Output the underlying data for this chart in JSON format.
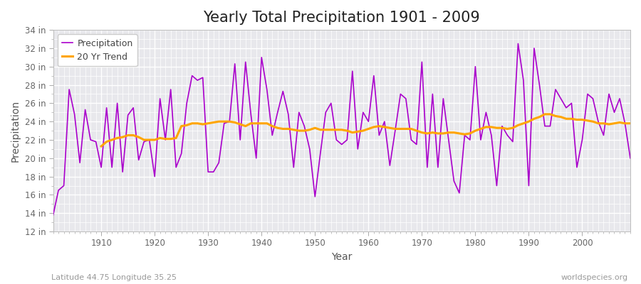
{
  "title": "Yearly Total Precipitation 1901 - 2009",
  "xlabel": "Year",
  "ylabel": "Precipitation",
  "subtitle_left": "Latitude 44.75 Longitude 35.25",
  "subtitle_right": "worldspecies.org",
  "years": [
    1901,
    1902,
    1903,
    1904,
    1905,
    1906,
    1907,
    1908,
    1909,
    1910,
    1911,
    1912,
    1913,
    1914,
    1915,
    1916,
    1917,
    1918,
    1919,
    1920,
    1921,
    1922,
    1923,
    1924,
    1925,
    1926,
    1927,
    1928,
    1929,
    1930,
    1931,
    1932,
    1933,
    1934,
    1935,
    1936,
    1937,
    1938,
    1939,
    1940,
    1941,
    1942,
    1943,
    1944,
    1945,
    1946,
    1947,
    1948,
    1949,
    1950,
    1951,
    1952,
    1953,
    1954,
    1955,
    1956,
    1957,
    1958,
    1959,
    1960,
    1961,
    1962,
    1963,
    1964,
    1965,
    1966,
    1967,
    1968,
    1969,
    1970,
    1971,
    1972,
    1973,
    1974,
    1975,
    1976,
    1977,
    1978,
    1979,
    1980,
    1981,
    1982,
    1983,
    1984,
    1985,
    1986,
    1987,
    1988,
    1989,
    1990,
    1991,
    1992,
    1993,
    1994,
    1995,
    1996,
    1997,
    1998,
    1999,
    2000,
    2001,
    2002,
    2003,
    2004,
    2005,
    2006,
    2007,
    2008,
    2009
  ],
  "precip": [
    13.8,
    16.5,
    17.0,
    27.5,
    24.8,
    19.5,
    25.3,
    22.0,
    21.8,
    19.0,
    25.5,
    19.0,
    26.0,
    18.5,
    24.7,
    25.5,
    19.8,
    21.8,
    22.0,
    18.0,
    26.5,
    22.0,
    27.5,
    19.0,
    20.5,
    26.0,
    29.0,
    28.5,
    28.8,
    18.5,
    18.5,
    19.5,
    23.8,
    24.0,
    30.3,
    22.0,
    30.5,
    24.8,
    20.0,
    31.0,
    27.5,
    22.5,
    25.0,
    27.3,
    24.8,
    19.0,
    25.0,
    23.5,
    21.0,
    15.8,
    20.5,
    25.0,
    26.0,
    22.0,
    21.5,
    22.0,
    29.5,
    21.0,
    25.0,
    24.0,
    29.0,
    22.5,
    24.0,
    19.2,
    23.0,
    27.0,
    26.5,
    22.0,
    21.5,
    30.5,
    19.0,
    27.0,
    19.0,
    26.5,
    22.0,
    17.5,
    16.2,
    22.5,
    22.0,
    30.0,
    22.0,
    25.0,
    22.5,
    17.0,
    23.5,
    22.5,
    21.8,
    32.5,
    28.5,
    17.0,
    32.0,
    28.0,
    23.5,
    23.5,
    27.5,
    26.5,
    25.5,
    26.0,
    19.0,
    22.0,
    27.0,
    26.5,
    24.0,
    22.5,
    27.0,
    25.0,
    26.5,
    23.8,
    20.0
  ],
  "trend": [
    null,
    null,
    null,
    null,
    null,
    null,
    null,
    null,
    null,
    21.3,
    21.8,
    22.0,
    22.2,
    22.3,
    22.5,
    22.5,
    22.3,
    22.0,
    22.0,
    22.0,
    22.2,
    22.1,
    22.1,
    22.2,
    23.5,
    23.6,
    23.8,
    23.8,
    23.7,
    23.8,
    23.9,
    24.0,
    24.0,
    24.0,
    23.9,
    23.7,
    23.5,
    23.8,
    23.8,
    23.8,
    23.8,
    23.5,
    23.3,
    23.2,
    23.2,
    23.1,
    23.0,
    23.0,
    23.1,
    23.3,
    23.1,
    23.1,
    23.1,
    23.1,
    23.1,
    23.0,
    22.8,
    22.9,
    23.0,
    23.2,
    23.4,
    23.5,
    23.4,
    23.3,
    23.2,
    23.2,
    23.2,
    23.2,
    23.0,
    22.8,
    22.7,
    22.8,
    22.7,
    22.7,
    22.8,
    22.8,
    22.7,
    22.6,
    22.7,
    23.0,
    23.2,
    23.4,
    23.4,
    23.3,
    23.3,
    23.2,
    23.3,
    23.6,
    23.8,
    24.0,
    24.3,
    24.5,
    24.8,
    24.8,
    24.6,
    24.5,
    24.3,
    24.3,
    24.2,
    24.2,
    24.1,
    24.0,
    23.8,
    23.8,
    23.7,
    23.8,
    23.9,
    23.8,
    23.8
  ],
  "precip_color": "#AA00CC",
  "trend_color": "#FFA500",
  "bg_color": "#FFFFFF",
  "plot_bg_color": "#E8E8EC",
  "grid_color": "#FFFFFF",
  "ylim": [
    12,
    34
  ],
  "yticks": [
    12,
    14,
    16,
    18,
    20,
    22,
    24,
    26,
    28,
    30,
    32,
    34
  ],
  "ytick_labels": [
    "12 in",
    "14 in",
    "16 in",
    "18 in",
    "20 in",
    "22 in",
    "24 in",
    "26 in",
    "28 in",
    "30 in",
    "32 in",
    "34 in"
  ],
  "xticks": [
    1910,
    1920,
    1930,
    1940,
    1950,
    1960,
    1970,
    1980,
    1990,
    2000
  ],
  "title_fontsize": 15,
  "axis_label_fontsize": 10,
  "tick_fontsize": 8.5,
  "legend_fontsize": 9
}
